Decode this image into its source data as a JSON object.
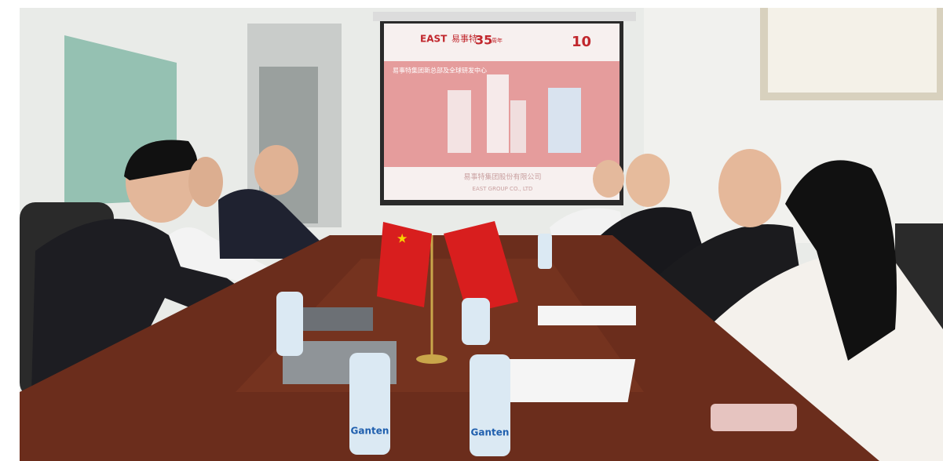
{
  "screen": {
    "brand": "EAST",
    "brand_cn": "易事特",
    "anniversary": "35",
    "anniversary_unit": "周年",
    "badge": "10",
    "headline": "易事特集团新总部及全球研发中心",
    "company_cn": "易事特集团股份有限公司",
    "company_en": "EAST GROUP CO., LTD"
  },
  "bottles": {
    "label": "Ganten"
  }
}
